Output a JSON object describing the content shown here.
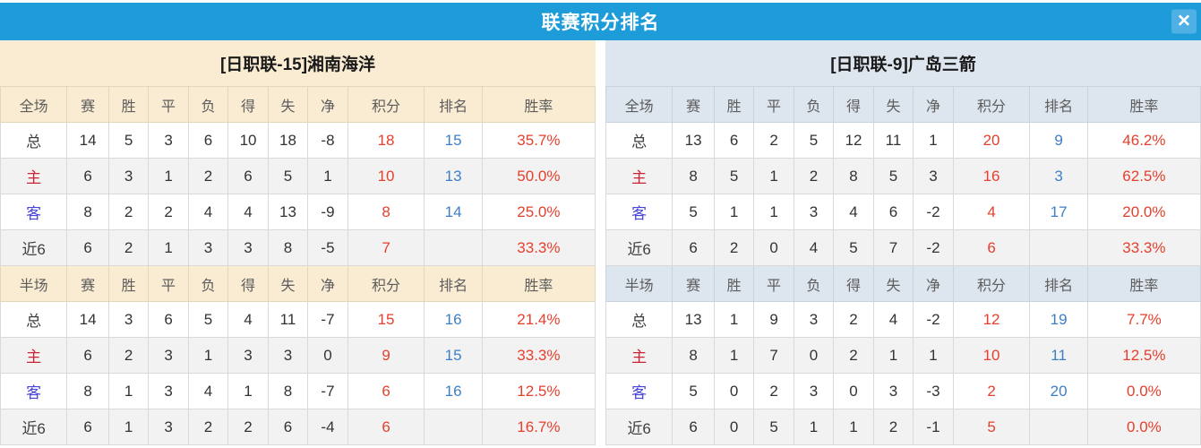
{
  "window": {
    "title": "联赛积分排名",
    "close_icon": "✕"
  },
  "colors": {
    "titlebar": "#1e9cd9",
    "close_button": "#4fb0e4",
    "left_theme": "#faecd2",
    "right_theme": "#dde5ef",
    "stripe": "#f2f2f2",
    "value_red": "#e5402e",
    "rank_blue": "#3e7fc4",
    "home_label_red": "#cd2336",
    "away_label_blue": "#4543d8"
  },
  "columns": [
    "赛",
    "胜",
    "平",
    "负",
    "得",
    "失",
    "净",
    "积分",
    "排名",
    "胜率"
  ],
  "teams": [
    {
      "name": "[日职联-15]湘南海洋",
      "full": {
        "header": "全场",
        "rows": [
          {
            "label": "总",
            "type": "total",
            "values": [
              "14",
              "5",
              "3",
              "6",
              "10",
              "18",
              "-8",
              "18",
              "15",
              "35.7%"
            ]
          },
          {
            "label": "主",
            "type": "home",
            "values": [
              "6",
              "3",
              "1",
              "2",
              "6",
              "5",
              "1",
              "10",
              "13",
              "50.0%"
            ]
          },
          {
            "label": "客",
            "type": "away",
            "values": [
              "8",
              "2",
              "2",
              "4",
              "4",
              "13",
              "-9",
              "8",
              "14",
              "25.0%"
            ]
          },
          {
            "label": "近6",
            "type": "recent",
            "values": [
              "6",
              "2",
              "1",
              "3",
              "3",
              "8",
              "-5",
              "7",
              "",
              "33.3%"
            ]
          }
        ]
      },
      "half": {
        "header": "半场",
        "rows": [
          {
            "label": "总",
            "type": "total",
            "values": [
              "14",
              "3",
              "6",
              "5",
              "4",
              "11",
              "-7",
              "15",
              "16",
              "21.4%"
            ]
          },
          {
            "label": "主",
            "type": "home",
            "values": [
              "6",
              "2",
              "3",
              "1",
              "3",
              "3",
              "0",
              "9",
              "15",
              "33.3%"
            ]
          },
          {
            "label": "客",
            "type": "away",
            "values": [
              "8",
              "1",
              "3",
              "4",
              "1",
              "8",
              "-7",
              "6",
              "16",
              "12.5%"
            ]
          },
          {
            "label": "近6",
            "type": "recent",
            "values": [
              "6",
              "1",
              "3",
              "2",
              "2",
              "6",
              "-4",
              "6",
              "",
              "16.7%"
            ]
          }
        ]
      }
    },
    {
      "name": "[日职联-9]广岛三箭",
      "full": {
        "header": "全场",
        "rows": [
          {
            "label": "总",
            "type": "total",
            "values": [
              "13",
              "6",
              "2",
              "5",
              "12",
              "11",
              "1",
              "20",
              "9",
              "46.2%"
            ]
          },
          {
            "label": "主",
            "type": "home",
            "values": [
              "8",
              "5",
              "1",
              "2",
              "8",
              "5",
              "3",
              "16",
              "3",
              "62.5%"
            ]
          },
          {
            "label": "客",
            "type": "away",
            "values": [
              "5",
              "1",
              "1",
              "3",
              "4",
              "6",
              "-2",
              "4",
              "17",
              "20.0%"
            ]
          },
          {
            "label": "近6",
            "type": "recent",
            "values": [
              "6",
              "2",
              "0",
              "4",
              "5",
              "7",
              "-2",
              "6",
              "",
              "33.3%"
            ]
          }
        ]
      },
      "half": {
        "header": "半场",
        "rows": [
          {
            "label": "总",
            "type": "total",
            "values": [
              "13",
              "1",
              "9",
              "3",
              "2",
              "4",
              "-2",
              "12",
              "19",
              "7.7%"
            ]
          },
          {
            "label": "主",
            "type": "home",
            "values": [
              "8",
              "1",
              "7",
              "0",
              "2",
              "1",
              "1",
              "10",
              "11",
              "12.5%"
            ]
          },
          {
            "label": "客",
            "type": "away",
            "values": [
              "5",
              "0",
              "2",
              "3",
              "0",
              "3",
              "-3",
              "2",
              "20",
              "0.0%"
            ]
          },
          {
            "label": "近6",
            "type": "recent",
            "values": [
              "6",
              "0",
              "5",
              "1",
              "1",
              "2",
              "-1",
              "5",
              "",
              "0.0%"
            ]
          }
        ]
      }
    }
  ]
}
